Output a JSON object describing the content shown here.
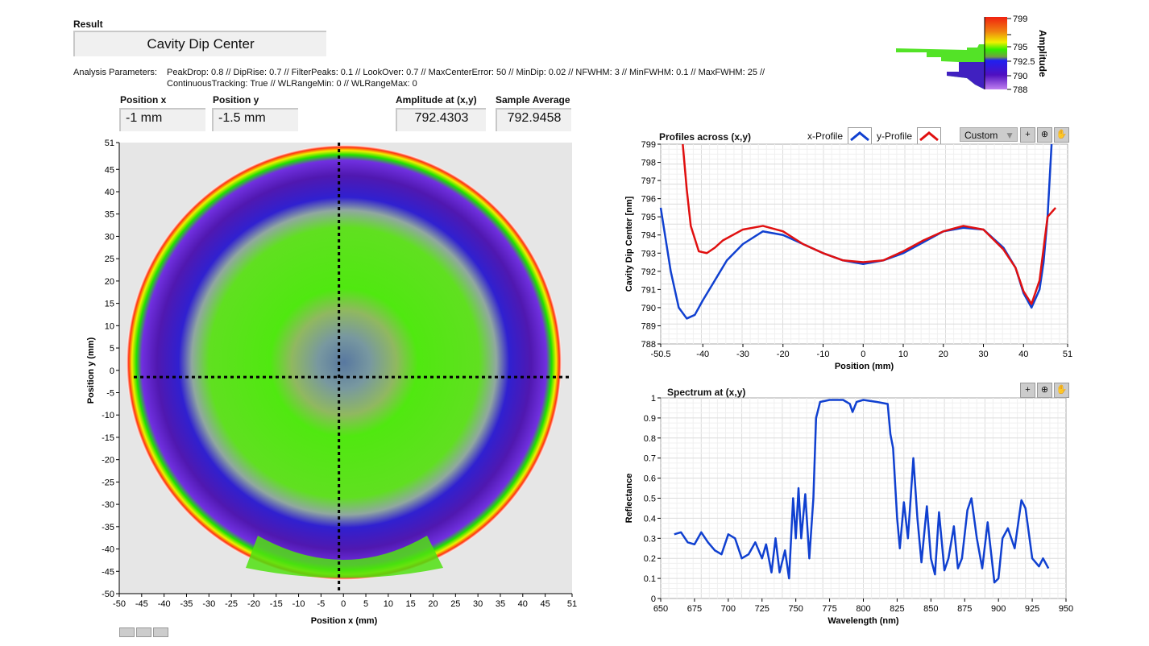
{
  "header": {
    "result_label": "Result",
    "result_value": "Cavity Dip Center",
    "params_label": "Analysis Parameters:",
    "params_line1": "PeakDrop: 0.8 // DipRise: 0.7 // FilterPeaks: 0.1 // LookOver: 0.7 // MaxCenterError: 50 // MinDip: 0.02 // NFWHM: 3 // MinFWHM: 0.1 // MaxFWHM: 25 //",
    "params_line2": "ContinuousTracking: True // WLRangeMin: 0 // WLRangeMax: 0"
  },
  "fields": {
    "position_x": {
      "label": "Position x",
      "value": "-1 mm"
    },
    "position_y": {
      "label": "Position y",
      "value": "-1.5 mm"
    },
    "amplitude": {
      "label": "Amplitude at (x,y)",
      "value": "792.4303"
    },
    "sample_average": {
      "label": "Sample Average",
      "value": "792.9458"
    }
  },
  "colorbar": {
    "label": "Amplitude",
    "ticks": [
      "799",
      "",
      "795",
      "792.5",
      "790",
      "788"
    ]
  },
  "profiles": {
    "title": "Profiles across (x,y)",
    "legend_x": "x-Profile",
    "legend_y": "y-Profile",
    "scale_mode": "Custom"
  },
  "spectrum": {
    "title": "Spectrum at (x,y)"
  },
  "chart_data": [
    {
      "type": "heatmap",
      "name": "map",
      "xlabel": "Position x (mm)",
      "ylabel": "Position y (mm)",
      "xlim": [
        -50,
        51
      ],
      "ylim": [
        -50,
        51
      ],
      "xticks": [
        -50,
        -45,
        -40,
        -35,
        -30,
        -25,
        -20,
        -15,
        -10,
        -5,
        0,
        5,
        10,
        15,
        20,
        25,
        30,
        35,
        40,
        45,
        51
      ],
      "yticks": [
        51,
        45,
        40,
        35,
        30,
        25,
        20,
        15,
        10,
        5,
        0,
        -5,
        -10,
        -15,
        -20,
        -25,
        -30,
        -35,
        -40,
        -45,
        -50
      ],
      "cursor": {
        "x": -1,
        "y": -1.5
      },
      "color_range": [
        788,
        799
      ]
    },
    {
      "type": "line",
      "name": "profiles",
      "xlabel": "Position (mm)",
      "ylabel": "Cavity Dip Center [nm]",
      "xlim": [
        -50.5,
        51
      ],
      "ylim": [
        788,
        799
      ],
      "xticks": [
        -50.5,
        -40,
        -30,
        -20,
        -10,
        0,
        10,
        20,
        30,
        40,
        51
      ],
      "yticks": [
        799,
        798,
        797,
        796,
        795,
        794,
        793,
        792,
        791,
        790,
        789,
        788
      ],
      "series": [
        {
          "name": "x-Profile",
          "color": "#1040d0",
          "x": [
            -50.5,
            -48,
            -46,
            -44,
            -42,
            -40,
            -37,
            -34,
            -30,
            -25,
            -20,
            -15,
            -10,
            -5,
            0,
            5,
            10,
            15,
            20,
            25,
            30,
            35,
            38,
            40,
            42,
            44,
            45,
            46,
            47
          ],
          "y": [
            795.5,
            792,
            790,
            789.4,
            789.6,
            790.4,
            791.5,
            792.6,
            793.5,
            794.2,
            794,
            793.5,
            793,
            792.6,
            792.4,
            792.6,
            793,
            793.6,
            794.2,
            794.4,
            794.3,
            793.3,
            792.2,
            790.8,
            790,
            791,
            792.5,
            795,
            799
          ]
        },
        {
          "name": "y-Profile",
          "color": "#e01010",
          "x": [
            -45,
            -44,
            -43,
            -41,
            -39,
            -37,
            -35,
            -30,
            -25,
            -20,
            -15,
            -10,
            -5,
            0,
            5,
            10,
            15,
            20,
            25,
            30,
            35,
            38,
            40,
            42,
            44,
            46,
            48
          ],
          "y": [
            799,
            796.5,
            794.5,
            793.1,
            793,
            793.3,
            793.7,
            794.3,
            794.5,
            794.2,
            793.5,
            793,
            792.6,
            792.5,
            792.6,
            793.1,
            793.7,
            794.2,
            794.5,
            794.3,
            793.2,
            792.2,
            790.9,
            790.2,
            791.5,
            795,
            795.5
          ]
        }
      ]
    },
    {
      "type": "line",
      "name": "spectrum",
      "xlabel": "Wavelength (nm)",
      "ylabel": "Reflectance",
      "xlim": [
        650,
        950
      ],
      "ylim": [
        0,
        1
      ],
      "xticks": [
        650,
        675,
        700,
        725,
        750,
        775,
        800,
        825,
        850,
        875,
        900,
        925,
        950
      ],
      "yticks": [
        1,
        0.9,
        0.8,
        0.7,
        0.6,
        0.5,
        0.4,
        0.3,
        0.2,
        0.1,
        0
      ],
      "series": [
        {
          "name": "Reflectance",
          "color": "#1040d0",
          "x": [
            660,
            665,
            670,
            675,
            680,
            685,
            690,
            695,
            700,
            705,
            710,
            715,
            720,
            725,
            728,
            732,
            735,
            738,
            742,
            745,
            748,
            750,
            752,
            754,
            757,
            760,
            763,
            765,
            768,
            775,
            785,
            790,
            792,
            795,
            800,
            810,
            818,
            820,
            822,
            825,
            827,
            830,
            833,
            837,
            840,
            843,
            847,
            850,
            853,
            856,
            860,
            863,
            867,
            870,
            873,
            877,
            880,
            884,
            888,
            892,
            897,
            900,
            903,
            907,
            912,
            917,
            920,
            925,
            930,
            933,
            937
          ],
          "y": [
            0.32,
            0.33,
            0.28,
            0.27,
            0.33,
            0.28,
            0.24,
            0.22,
            0.32,
            0.3,
            0.2,
            0.22,
            0.28,
            0.2,
            0.27,
            0.13,
            0.3,
            0.13,
            0.24,
            0.1,
            0.5,
            0.3,
            0.55,
            0.3,
            0.52,
            0.2,
            0.5,
            0.9,
            0.98,
            0.99,
            0.99,
            0.97,
            0.93,
            0.98,
            0.99,
            0.98,
            0.97,
            0.82,
            0.75,
            0.4,
            0.25,
            0.48,
            0.3,
            0.7,
            0.4,
            0.18,
            0.46,
            0.2,
            0.12,
            0.43,
            0.14,
            0.2,
            0.36,
            0.15,
            0.2,
            0.44,
            0.5,
            0.3,
            0.15,
            0.38,
            0.08,
            0.1,
            0.3,
            0.35,
            0.25,
            0.49,
            0.45,
            0.2,
            0.16,
            0.2,
            0.15
          ]
        }
      ]
    }
  ]
}
